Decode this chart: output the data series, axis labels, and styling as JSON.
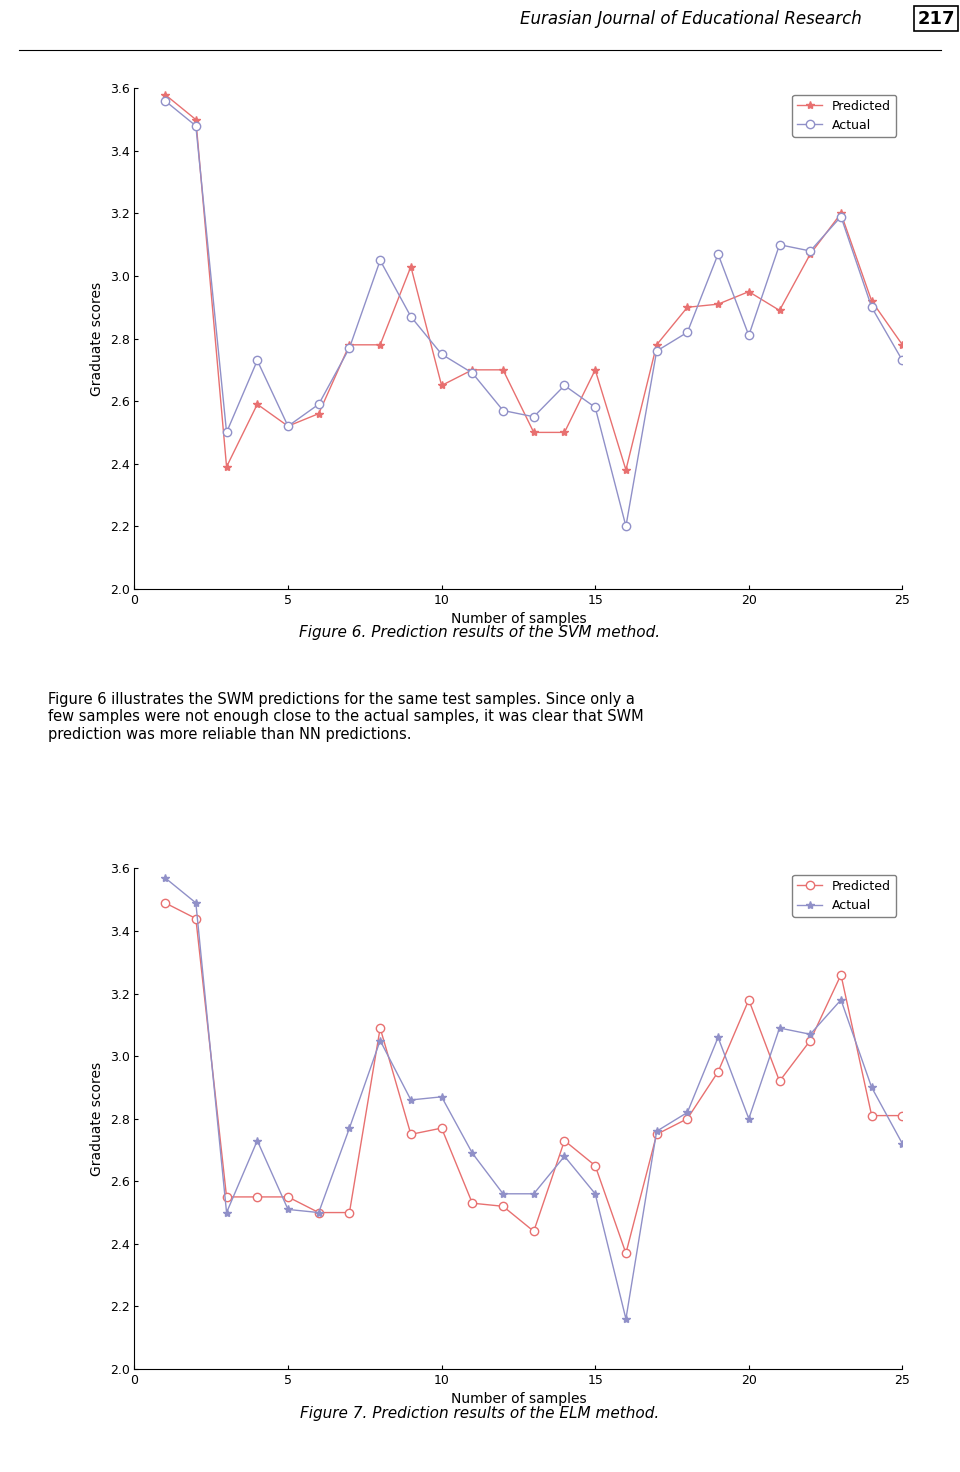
{
  "fig1": {
    "title": "Figure 6. Prediction results of the SVM method.",
    "xlabel": "Number of samples",
    "ylabel": "Graduate scores",
    "ylim": [
      2.0,
      3.6
    ],
    "xlim": [
      0,
      25
    ],
    "yticks": [
      2.0,
      2.2,
      2.4,
      2.6,
      2.8,
      3.0,
      3.2,
      3.4,
      3.6
    ],
    "xticks": [
      0,
      5,
      10,
      15,
      20,
      25
    ],
    "predicted_x": [
      1,
      2,
      3,
      4,
      5,
      6,
      7,
      8,
      9,
      10,
      11,
      12,
      13,
      14,
      15,
      16,
      17,
      18,
      19,
      20,
      21,
      22,
      23,
      24,
      25
    ],
    "predicted_y": [
      3.58,
      3.5,
      2.39,
      2.59,
      2.52,
      2.56,
      2.78,
      2.78,
      3.03,
      2.65,
      2.7,
      2.7,
      2.5,
      2.5,
      2.7,
      2.38,
      2.78,
      2.9,
      2.91,
      2.95,
      2.89,
      3.07,
      3.2,
      2.92,
      2.78
    ],
    "actual_x": [
      1,
      2,
      3,
      4,
      5,
      6,
      7,
      8,
      9,
      10,
      11,
      12,
      13,
      14,
      15,
      16,
      17,
      18,
      19,
      20,
      21,
      22,
      23,
      24,
      25
    ],
    "actual_y": [
      3.56,
      3.48,
      2.5,
      2.73,
      2.52,
      2.59,
      2.77,
      3.05,
      2.87,
      2.75,
      2.69,
      2.57,
      2.55,
      2.65,
      2.58,
      2.2,
      2.76,
      2.82,
      3.07,
      2.81,
      3.1,
      3.08,
      3.19,
      2.9,
      2.73
    ],
    "predicted_color": "#e87070",
    "actual_color": "#9090c8",
    "predicted_label": "Predicted",
    "actual_label": "Actual"
  },
  "fig2": {
    "title": "Figure 7. Prediction results of the ELM method.",
    "xlabel": "Number of samples",
    "ylabel": "Graduate scores",
    "ylim": [
      2.0,
      3.6
    ],
    "xlim": [
      0,
      25
    ],
    "yticks": [
      2.0,
      2.2,
      2.4,
      2.6,
      2.8,
      3.0,
      3.2,
      3.4,
      3.6
    ],
    "xticks": [
      0,
      5,
      10,
      15,
      20,
      25
    ],
    "predicted_x": [
      1,
      2,
      3,
      4,
      5,
      6,
      7,
      8,
      9,
      10,
      11,
      12,
      13,
      14,
      15,
      16,
      17,
      18,
      19,
      20,
      21,
      22,
      23,
      24,
      25
    ],
    "predicted_y": [
      3.49,
      3.44,
      2.55,
      2.55,
      2.55,
      2.5,
      2.5,
      3.09,
      2.75,
      2.77,
      2.53,
      2.52,
      2.44,
      2.73,
      2.65,
      2.37,
      2.75,
      2.8,
      2.95,
      3.18,
      2.92,
      3.05,
      3.26,
      2.81,
      2.81
    ],
    "actual_x": [
      1,
      2,
      3,
      4,
      5,
      6,
      7,
      8,
      9,
      10,
      11,
      12,
      13,
      14,
      15,
      16,
      17,
      18,
      19,
      20,
      21,
      22,
      23,
      24,
      25
    ],
    "actual_y": [
      3.57,
      3.49,
      2.5,
      2.73,
      2.51,
      2.5,
      2.77,
      3.05,
      2.86,
      2.87,
      2.69,
      2.56,
      2.56,
      2.68,
      2.56,
      2.16,
      2.76,
      2.82,
      3.06,
      2.8,
      3.09,
      3.07,
      3.18,
      2.9,
      2.72
    ],
    "predicted_color": "#e87070",
    "actual_color": "#9090c8",
    "predicted_label": "Predicted",
    "actual_label": "Actual"
  },
  "header_text": "Eurasian Journal of Educational Research",
  "header_page": "217",
  "body_text": "Figure 6 illustrates the SWM predictions for the same test samples. Since only a\nfew samples were not enough close to the actual samples, it was clear that SWM\nprediction was more reliable than NN predictions.",
  "fig1_caption": "Figure 6. Prediction results of the SVM method.",
  "fig2_caption": "Figure 7. Prediction results of the ELM method.",
  "background_color": "#ffffff"
}
